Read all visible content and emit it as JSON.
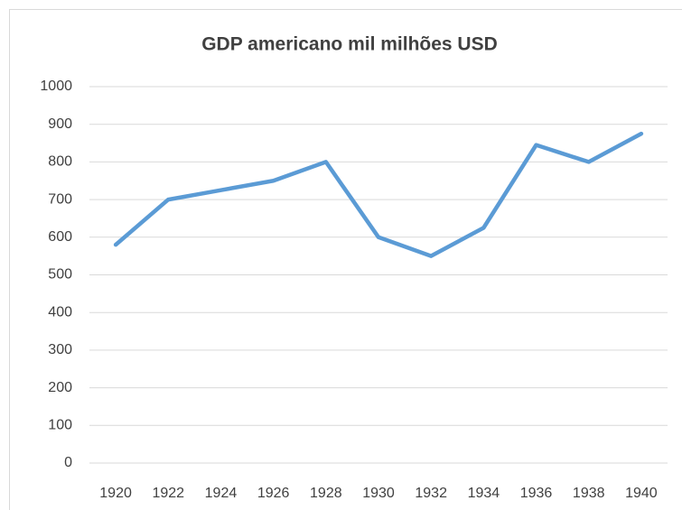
{
  "chart_data": {
    "type": "line",
    "title": "GDP americano mil milhões USD",
    "categories": [
      "1920",
      "1922",
      "1924",
      "1926",
      "1928",
      "1930",
      "1932",
      "1934",
      "1936",
      "1938",
      "1940"
    ],
    "series": [
      {
        "name": "GDP",
        "color": "#5b9bd5",
        "values": [
          580,
          700,
          725,
          750,
          800,
          600,
          550,
          625,
          845,
          800,
          875
        ]
      }
    ],
    "ylim": [
      0,
      1000
    ],
    "yticks": [
      0,
      100,
      200,
      300,
      400,
      500,
      600,
      700,
      800,
      900,
      1000
    ],
    "grid": true
  }
}
